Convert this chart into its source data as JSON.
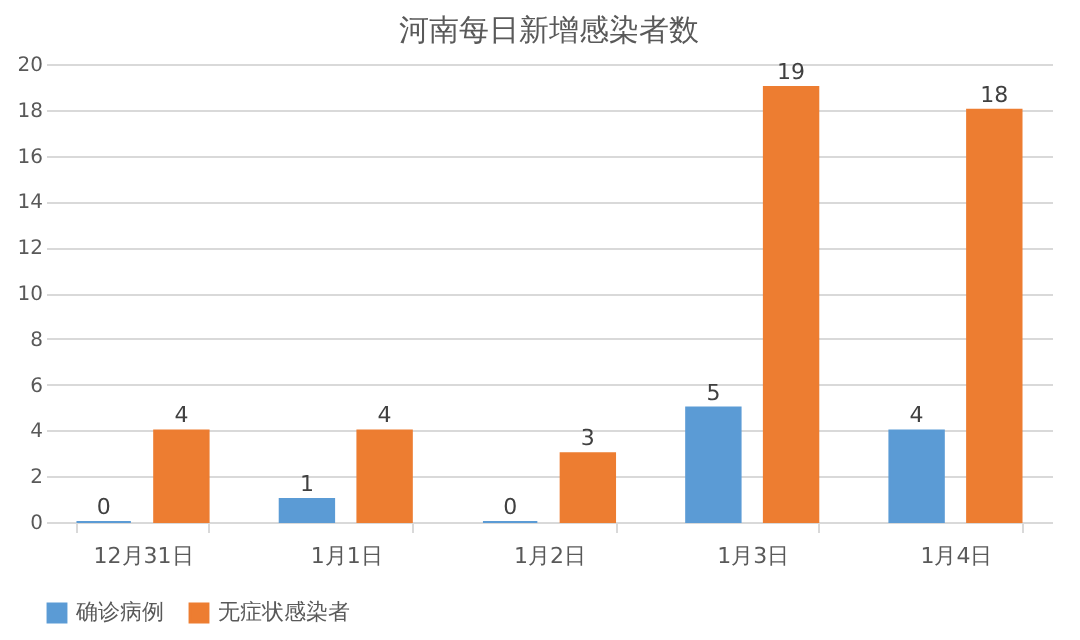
{
  "chart_data": {
    "type": "bar",
    "title": "河南每日新增感染者数",
    "categories": [
      "12月31日",
      "1月1日",
      "1月2日",
      "1月3日",
      "1月4日"
    ],
    "series": [
      {
        "name": "确诊病例",
        "color": "#5b9bd5",
        "values": [
          0,
          1,
          0,
          5,
          4
        ]
      },
      {
        "name": "无症状感染者",
        "color": "#ed7d31",
        "values": [
          4,
          4,
          3,
          19,
          18
        ]
      }
    ],
    "ylim": [
      0,
      20
    ],
    "yticks": [
      0,
      2,
      4,
      6,
      8,
      10,
      12,
      14,
      16,
      18,
      20
    ],
    "grid": "y",
    "legend": "bottom",
    "data_labels": true
  }
}
